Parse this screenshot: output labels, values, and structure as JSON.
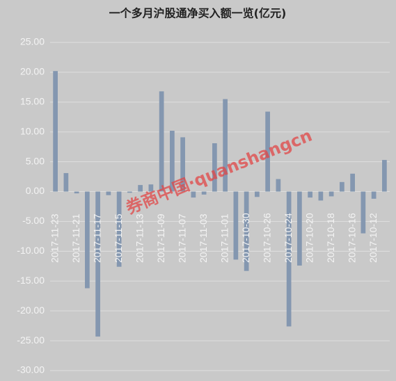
{
  "chart_data": {
    "type": "bar",
    "title": "一个多月沪股通净买入额一览(亿元)",
    "watermark": "券商中国·quanshangcn",
    "categories": [
      "2017-11-23",
      null,
      "2017-11-21",
      null,
      "2017-11-17",
      null,
      "2017-11-15",
      null,
      "2017-11-13",
      null,
      "2017-11-09",
      null,
      "2017-11-07",
      null,
      "2017-11-03",
      null,
      "2017-11-01",
      null,
      "2017-10-30",
      null,
      "2017-10-26",
      null,
      "2017-10-24",
      null,
      "2017-10-20",
      null,
      "2017-10-18",
      null,
      "2017-10-16",
      null,
      "2017-10-12",
      null
    ],
    "values": [
      20.2,
      3.1,
      -0.3,
      -16.2,
      -24.3,
      -0.6,
      -12.6,
      -0.2,
      1.1,
      1.2,
      16.8,
      10.2,
      9.1,
      -1.0,
      -0.5,
      8.1,
      15.5,
      -11.4,
      -13.3,
      -0.9,
      13.4,
      2.1,
      -22.6,
      -12.4,
      -1.0,
      -1.5,
      -0.8,
      1.6,
      3.0,
      -7.0,
      -1.2,
      5.3
    ],
    "color": "#8497b0",
    "ylim": [
      -30,
      25
    ],
    "yticks": [
      {
        "value": -30,
        "label": "-30.00"
      },
      {
        "value": -25,
        "label": "-25.00"
      },
      {
        "value": -20,
        "label": "-20.00"
      },
      {
        "value": -15,
        "label": "-15.00"
      },
      {
        "value": -10,
        "label": "-10.00"
      },
      {
        "value": -5,
        "label": "-5.00"
      },
      {
        "value": 0,
        "label": "0.00"
      },
      {
        "value": 5,
        "label": "5.00"
      },
      {
        "value": 10,
        "label": "10.00"
      },
      {
        "value": 15,
        "label": "15.00"
      },
      {
        "value": 20,
        "label": "20.00"
      },
      {
        "value": 25,
        "label": "25.00"
      }
    ],
    "grid": true
  }
}
